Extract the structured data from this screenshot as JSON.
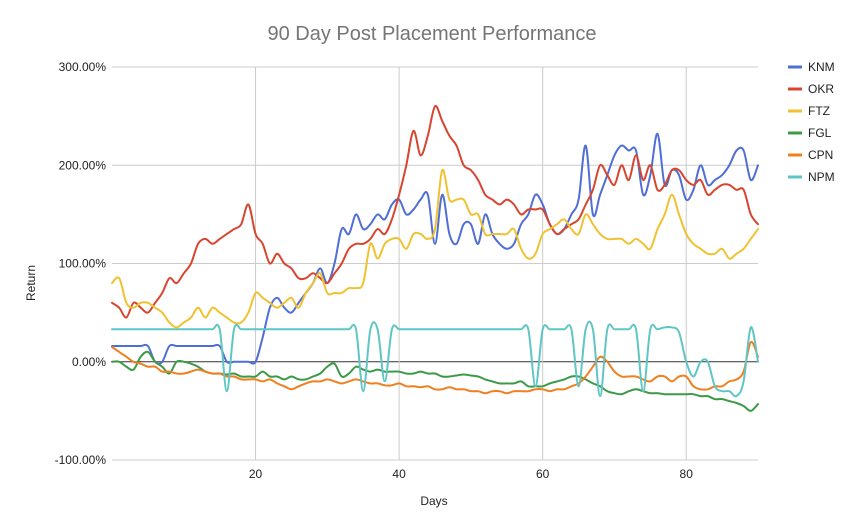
{
  "chart_data": {
    "type": "line",
    "title": "90 Day Post Placement Performance",
    "xlabel": "Days",
    "ylabel": "Return",
    "xlim": [
      0,
      90
    ],
    "ylim": [
      -100,
      300
    ],
    "x_ticks": [
      20,
      40,
      60,
      80
    ],
    "x_tick_labels": [
      "20",
      "40",
      "60",
      "80"
    ],
    "y_ticks": [
      -100,
      0,
      100,
      200,
      300
    ],
    "y_tick_labels": [
      "-100.00%",
      "0.00%",
      "100.00%",
      "200.00%",
      "300.00%"
    ],
    "grid": true,
    "legend_position": "right",
    "x": [
      0,
      1,
      2,
      3,
      4,
      5,
      6,
      7,
      8,
      9,
      10,
      11,
      12,
      13,
      14,
      15,
      16,
      17,
      18,
      19,
      20,
      21,
      22,
      23,
      24,
      25,
      26,
      27,
      28,
      29,
      30,
      31,
      32,
      33,
      34,
      35,
      36,
      37,
      38,
      39,
      40,
      41,
      42,
      43,
      44,
      45,
      46,
      47,
      48,
      49,
      50,
      51,
      52,
      53,
      54,
      55,
      56,
      57,
      58,
      59,
      60,
      61,
      62,
      63,
      64,
      65,
      66,
      67,
      68,
      69,
      70,
      71,
      72,
      73,
      74,
      75,
      76,
      77,
      78,
      79,
      80,
      81,
      82,
      83,
      84,
      85,
      86,
      87,
      88,
      89,
      90
    ],
    "series": [
      {
        "name": "KNM",
        "color": "#4f6ed6",
        "values": [
          16,
          16,
          16,
          16,
          16,
          16,
          0,
          0,
          16,
          16,
          16,
          16,
          16,
          16,
          16,
          16,
          0,
          0,
          0,
          0,
          0,
          25,
          55,
          65,
          55,
          50,
          60,
          70,
          80,
          95,
          80,
          100,
          135,
          130,
          150,
          135,
          140,
          150,
          145,
          160,
          165,
          150,
          155,
          165,
          170,
          120,
          170,
          130,
          120,
          140,
          140,
          120,
          150,
          130,
          120,
          115,
          120,
          140,
          150,
          170,
          160,
          140,
          130,
          135,
          150,
          165,
          220,
          150,
          170,
          190,
          210,
          220,
          215,
          215,
          170,
          190,
          232,
          180,
          195,
          190,
          165,
          175,
          200,
          180,
          185,
          190,
          200,
          215,
          215,
          185,
          200
        ]
      },
      {
        "name": "OKR",
        "color": "#d8452f",
        "values": [
          60,
          55,
          45,
          60,
          55,
          50,
          60,
          70,
          85,
          80,
          90,
          100,
          120,
          125,
          120,
          125,
          130,
          135,
          140,
          160,
          130,
          120,
          100,
          110,
          100,
          95,
          85,
          85,
          90,
          85,
          80,
          90,
          100,
          115,
          120,
          120,
          125,
          135,
          130,
          145,
          170,
          200,
          235,
          210,
          230,
          260,
          245,
          230,
          220,
          200,
          195,
          185,
          170,
          165,
          160,
          165,
          160,
          150,
          155,
          155,
          155,
          140,
          130,
          135,
          140,
          145,
          160,
          175,
          200,
          190,
          180,
          200,
          185,
          210,
          185,
          200,
          175,
          180,
          195,
          195,
          185,
          180,
          185,
          170,
          175,
          180,
          180,
          175,
          175,
          150,
          140
        ]
      },
      {
        "name": "FTZ",
        "color": "#f0c231",
        "values": [
          80,
          85,
          60,
          55,
          60,
          60,
          55,
          50,
          40,
          35,
          40,
          45,
          55,
          45,
          55,
          50,
          45,
          40,
          40,
          50,
          70,
          65,
          60,
          55,
          60,
          65,
          55,
          70,
          80,
          90,
          70,
          70,
          70,
          75,
          75,
          80,
          120,
          105,
          120,
          125,
          125,
          115,
          130,
          130,
          125,
          135,
          195,
          165,
          165,
          165,
          150,
          150,
          130,
          130,
          130,
          130,
          135,
          115,
          105,
          110,
          130,
          135,
          140,
          145,
          135,
          130,
          150,
          140,
          130,
          125,
          125,
          125,
          120,
          125,
          120,
          115,
          135,
          150,
          170,
          150,
          130,
          120,
          115,
          110,
          110,
          115,
          105,
          110,
          115,
          125,
          135
        ]
      },
      {
        "name": "FGL",
        "color": "#3c9a47",
        "values": [
          0,
          0,
          -5,
          -8,
          5,
          10,
          0,
          -5,
          -12,
          0,
          0,
          -2,
          -5,
          -10,
          -12,
          -12,
          -13,
          -12,
          -15,
          -15,
          -15,
          -10,
          -15,
          -15,
          -18,
          -15,
          -18,
          -18,
          -15,
          -12,
          -5,
          -2,
          -15,
          -12,
          -5,
          -8,
          -10,
          -8,
          -10,
          -10,
          -10,
          -12,
          -12,
          -10,
          -12,
          -12,
          -15,
          -15,
          -14,
          -13,
          -14,
          -15,
          -18,
          -20,
          -22,
          -22,
          -22,
          -20,
          -25,
          -25,
          -25,
          -22,
          -20,
          -18,
          -15,
          -15,
          -18,
          -22,
          -25,
          -30,
          -32,
          -33,
          -30,
          -28,
          -30,
          -32,
          -32,
          -33,
          -33,
          -33,
          -33,
          -33,
          -35,
          -35,
          -38,
          -38,
          -40,
          -42,
          -45,
          -50,
          -43
        ]
      },
      {
        "name": "CPN",
        "color": "#f07f1f",
        "values": [
          15,
          10,
          5,
          0,
          -2,
          -5,
          -5,
          -10,
          -10,
          -12,
          -12,
          -10,
          -8,
          -10,
          -12,
          -12,
          -15,
          -15,
          -18,
          -18,
          -18,
          -20,
          -18,
          -22,
          -25,
          -28,
          -25,
          -22,
          -20,
          -20,
          -18,
          -20,
          -22,
          -20,
          -18,
          -20,
          -22,
          -22,
          -24,
          -24,
          -22,
          -25,
          -25,
          -26,
          -25,
          -28,
          -28,
          -26,
          -28,
          -28,
          -30,
          -30,
          -32,
          -30,
          -30,
          -32,
          -30,
          -30,
          -30,
          -28,
          -28,
          -30,
          -28,
          -28,
          -25,
          -22,
          -15,
          -5,
          5,
          0,
          -10,
          -15,
          -15,
          -15,
          -18,
          -20,
          -15,
          -15,
          -20,
          -15,
          -15,
          -25,
          -28,
          -28,
          -25,
          -25,
          -20,
          -18,
          -10,
          20,
          5
        ]
      },
      {
        "name": "NPM",
        "color": "#5fc5c5",
        "values": [
          33,
          33,
          33,
          33,
          33,
          33,
          33,
          33,
          33,
          33,
          33,
          33,
          33,
          33,
          33,
          33,
          -30,
          33,
          33,
          33,
          33,
          33,
          33,
          33,
          33,
          33,
          33,
          33,
          33,
          33,
          33,
          33,
          33,
          33,
          33,
          -30,
          33,
          33,
          -20,
          33,
          33,
          33,
          33,
          33,
          33,
          33,
          33,
          33,
          33,
          33,
          33,
          33,
          33,
          33,
          33,
          33,
          33,
          33,
          33,
          -25,
          33,
          33,
          33,
          33,
          33,
          -25,
          33,
          33,
          -35,
          33,
          33,
          33,
          33,
          33,
          -30,
          33,
          33,
          35,
          35,
          30,
          0,
          -15,
          0,
          0,
          -25,
          -30,
          -30,
          -35,
          -20,
          35,
          0
        ]
      }
    ]
  }
}
